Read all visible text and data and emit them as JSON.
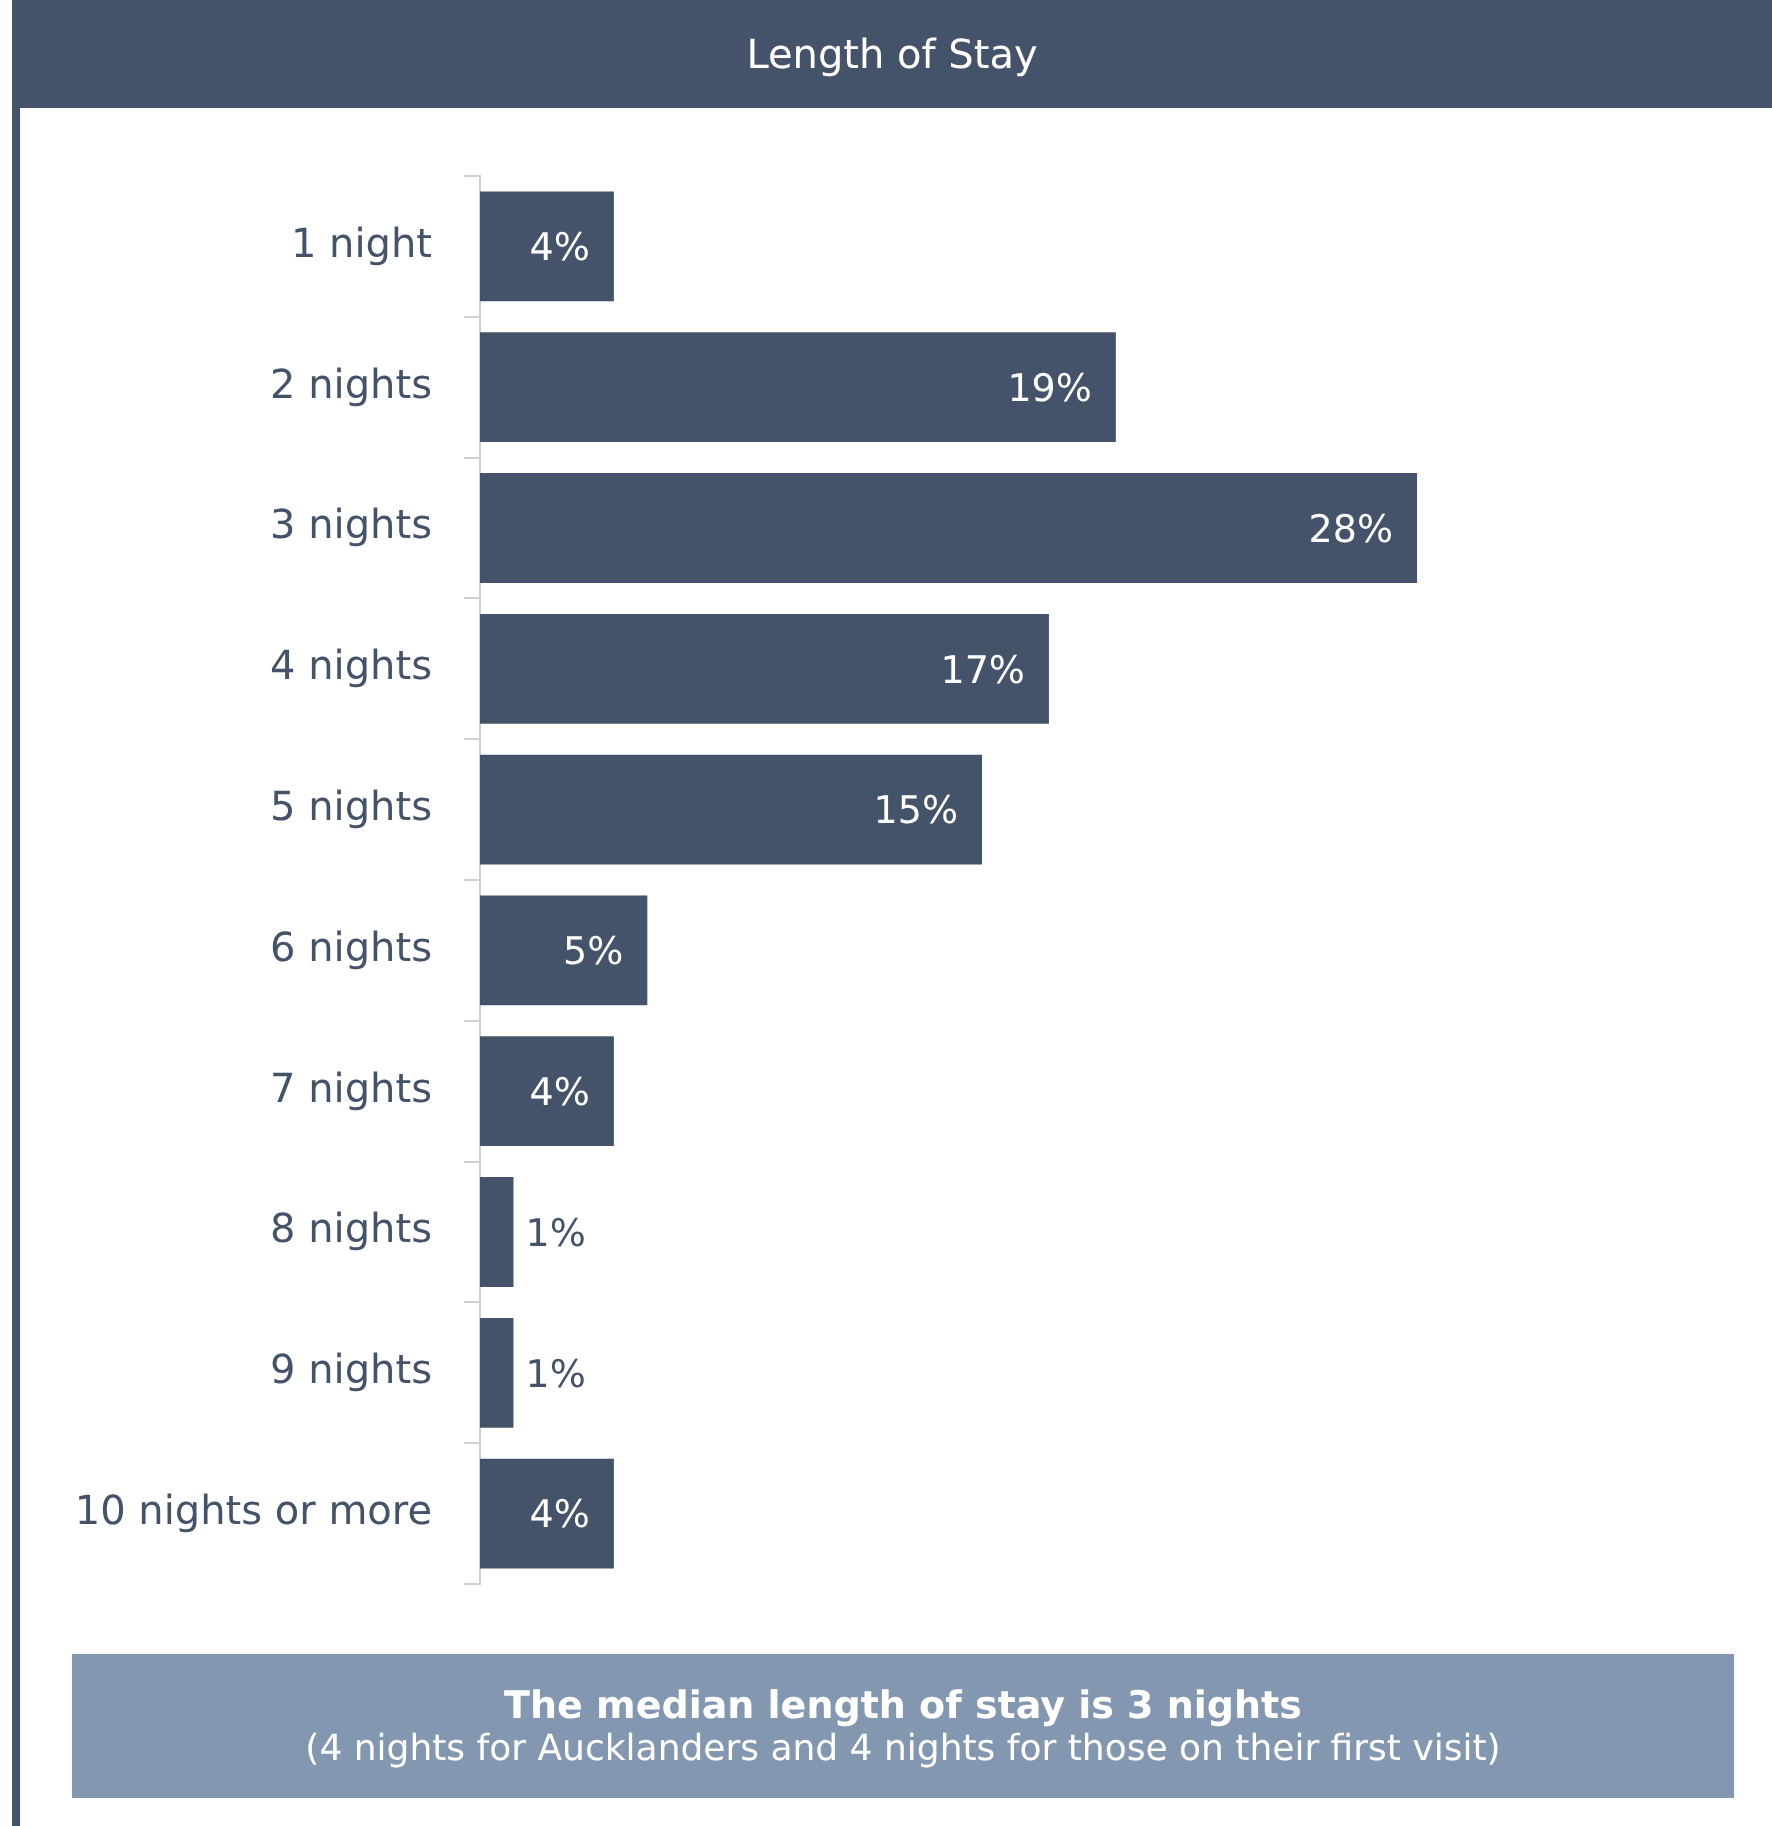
{
  "chart_data": {
    "type": "bar",
    "orientation": "horizontal",
    "title": "Length of Stay",
    "categories": [
      "1 night",
      "2 nights",
      "3 nights",
      "4 nights",
      "5 nights",
      "6 nights",
      "7 nights",
      "8 nights",
      "9 nights",
      "10 nights or more"
    ],
    "values": [
      4,
      19,
      28,
      17,
      15,
      5,
      4,
      1,
      1,
      4
    ],
    "value_labels": [
      "4%",
      "19%",
      "28%",
      "17%",
      "15%",
      "5%",
      "4%",
      "1%",
      "1%",
      "4%"
    ],
    "color": "#44536a",
    "tick_labels": "y",
    "legend": false,
    "annotations": [
      "The median length of stay is 3 nights",
      "(4 nights for Aucklanders and 4 nights for those on their first visit)"
    ]
  }
}
